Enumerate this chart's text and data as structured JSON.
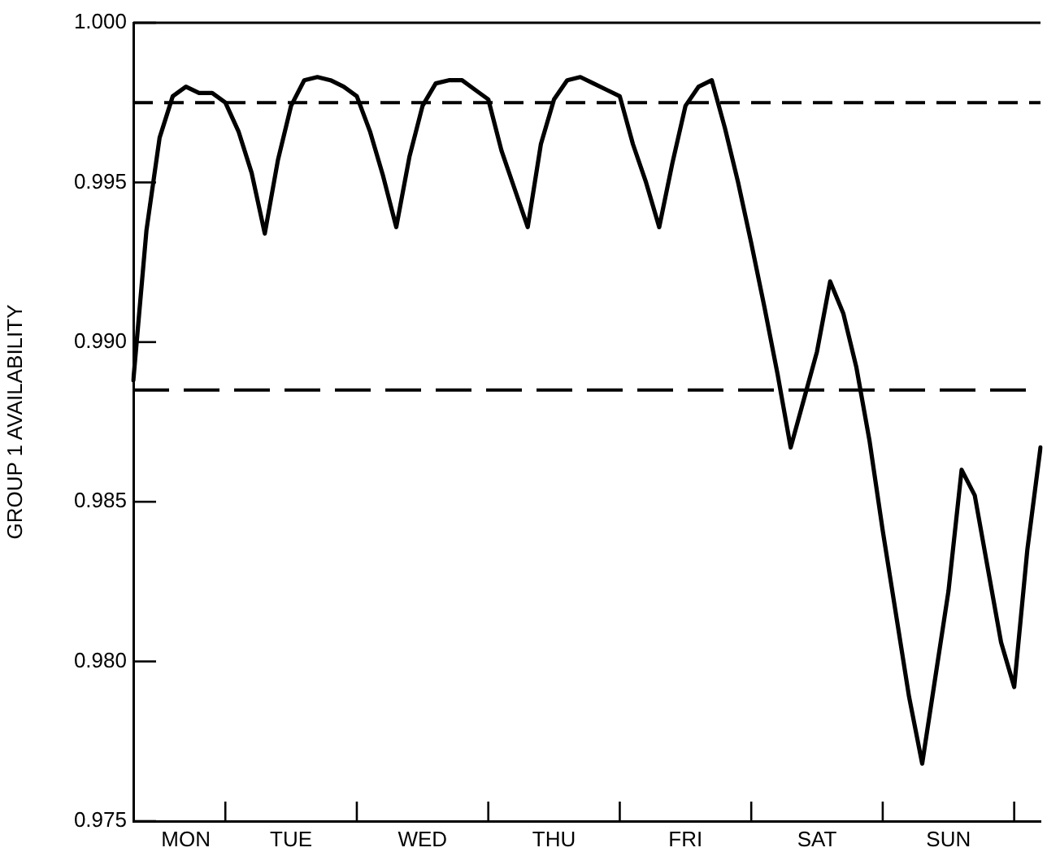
{
  "chart_data": {
    "type": "line",
    "ylabel": "GROUP 1 AVAILABILITY",
    "categories": [
      null,
      null,
      null,
      null,
      "MON",
      null,
      null,
      null,
      null,
      null,
      null,
      null,
      "TUE",
      null,
      null,
      null,
      null,
      null,
      null,
      null,
      null,
      null,
      "WED",
      null,
      null,
      null,
      null,
      null,
      null,
      null,
      null,
      null,
      "THU",
      null,
      null,
      null,
      null,
      null,
      null,
      null,
      null,
      null,
      "FRI",
      null,
      null,
      null,
      null,
      null,
      null,
      null,
      null,
      null,
      "SAT",
      null,
      null,
      null,
      null,
      null,
      null,
      null,
      null,
      null,
      "SUN",
      null,
      null,
      null,
      null,
      null,
      null,
      null
    ],
    "series": [
      {
        "color": "#000000",
        "values": [
          0.9888,
          0.9935,
          0.9964,
          0.9977,
          0.998,
          0.9978,
          0.9978,
          0.9975,
          0.9966,
          0.9953,
          0.9934,
          0.9957,
          0.9974,
          0.9982,
          0.9983,
          0.9982,
          0.998,
          0.9977,
          0.9966,
          0.9952,
          0.9936,
          0.9958,
          0.9974,
          0.9981,
          0.9982,
          0.9982,
          0.9979,
          0.9976,
          0.996,
          0.9948,
          0.9936,
          0.9962,
          0.9976,
          0.9982,
          0.9983,
          0.9981,
          0.9979,
          0.9977,
          0.9962,
          0.995,
          0.9936,
          0.9956,
          0.9974,
          0.998,
          0.9982,
          0.9967,
          0.995,
          0.9931,
          0.9911,
          0.989,
          0.9867,
          0.9882,
          0.9897,
          0.9919,
          0.9909,
          0.9892,
          0.9869,
          0.9841,
          0.9815,
          0.9789,
          0.9768,
          0.9795,
          0.9822,
          0.986,
          0.9852,
          0.9829,
          0.9806,
          0.9792,
          0.9835,
          0.9867
        ]
      }
    ],
    "ylim": [
      0.975,
      1.0
    ],
    "yticks": [
      0.975,
      {
        "value": 0.98,
        "label": "0.980"
      },
      0.985,
      {
        "value": 0.99,
        "label": "0.990"
      },
      0.995,
      {
        "value": 1.0,
        "label": "1.000"
      }
    ],
    "ref_lines": [
      {
        "axis": "y",
        "value": 0.9975,
        "color": "#000000",
        "line_style": "dashed"
      },
      {
        "axis": "y",
        "value": 0.9885,
        "color": "#000000",
        "line_style": "dashed"
      }
    ],
    "grid": false,
    "legend": false,
    "marker": "none",
    "line_style": "solid"
  }
}
